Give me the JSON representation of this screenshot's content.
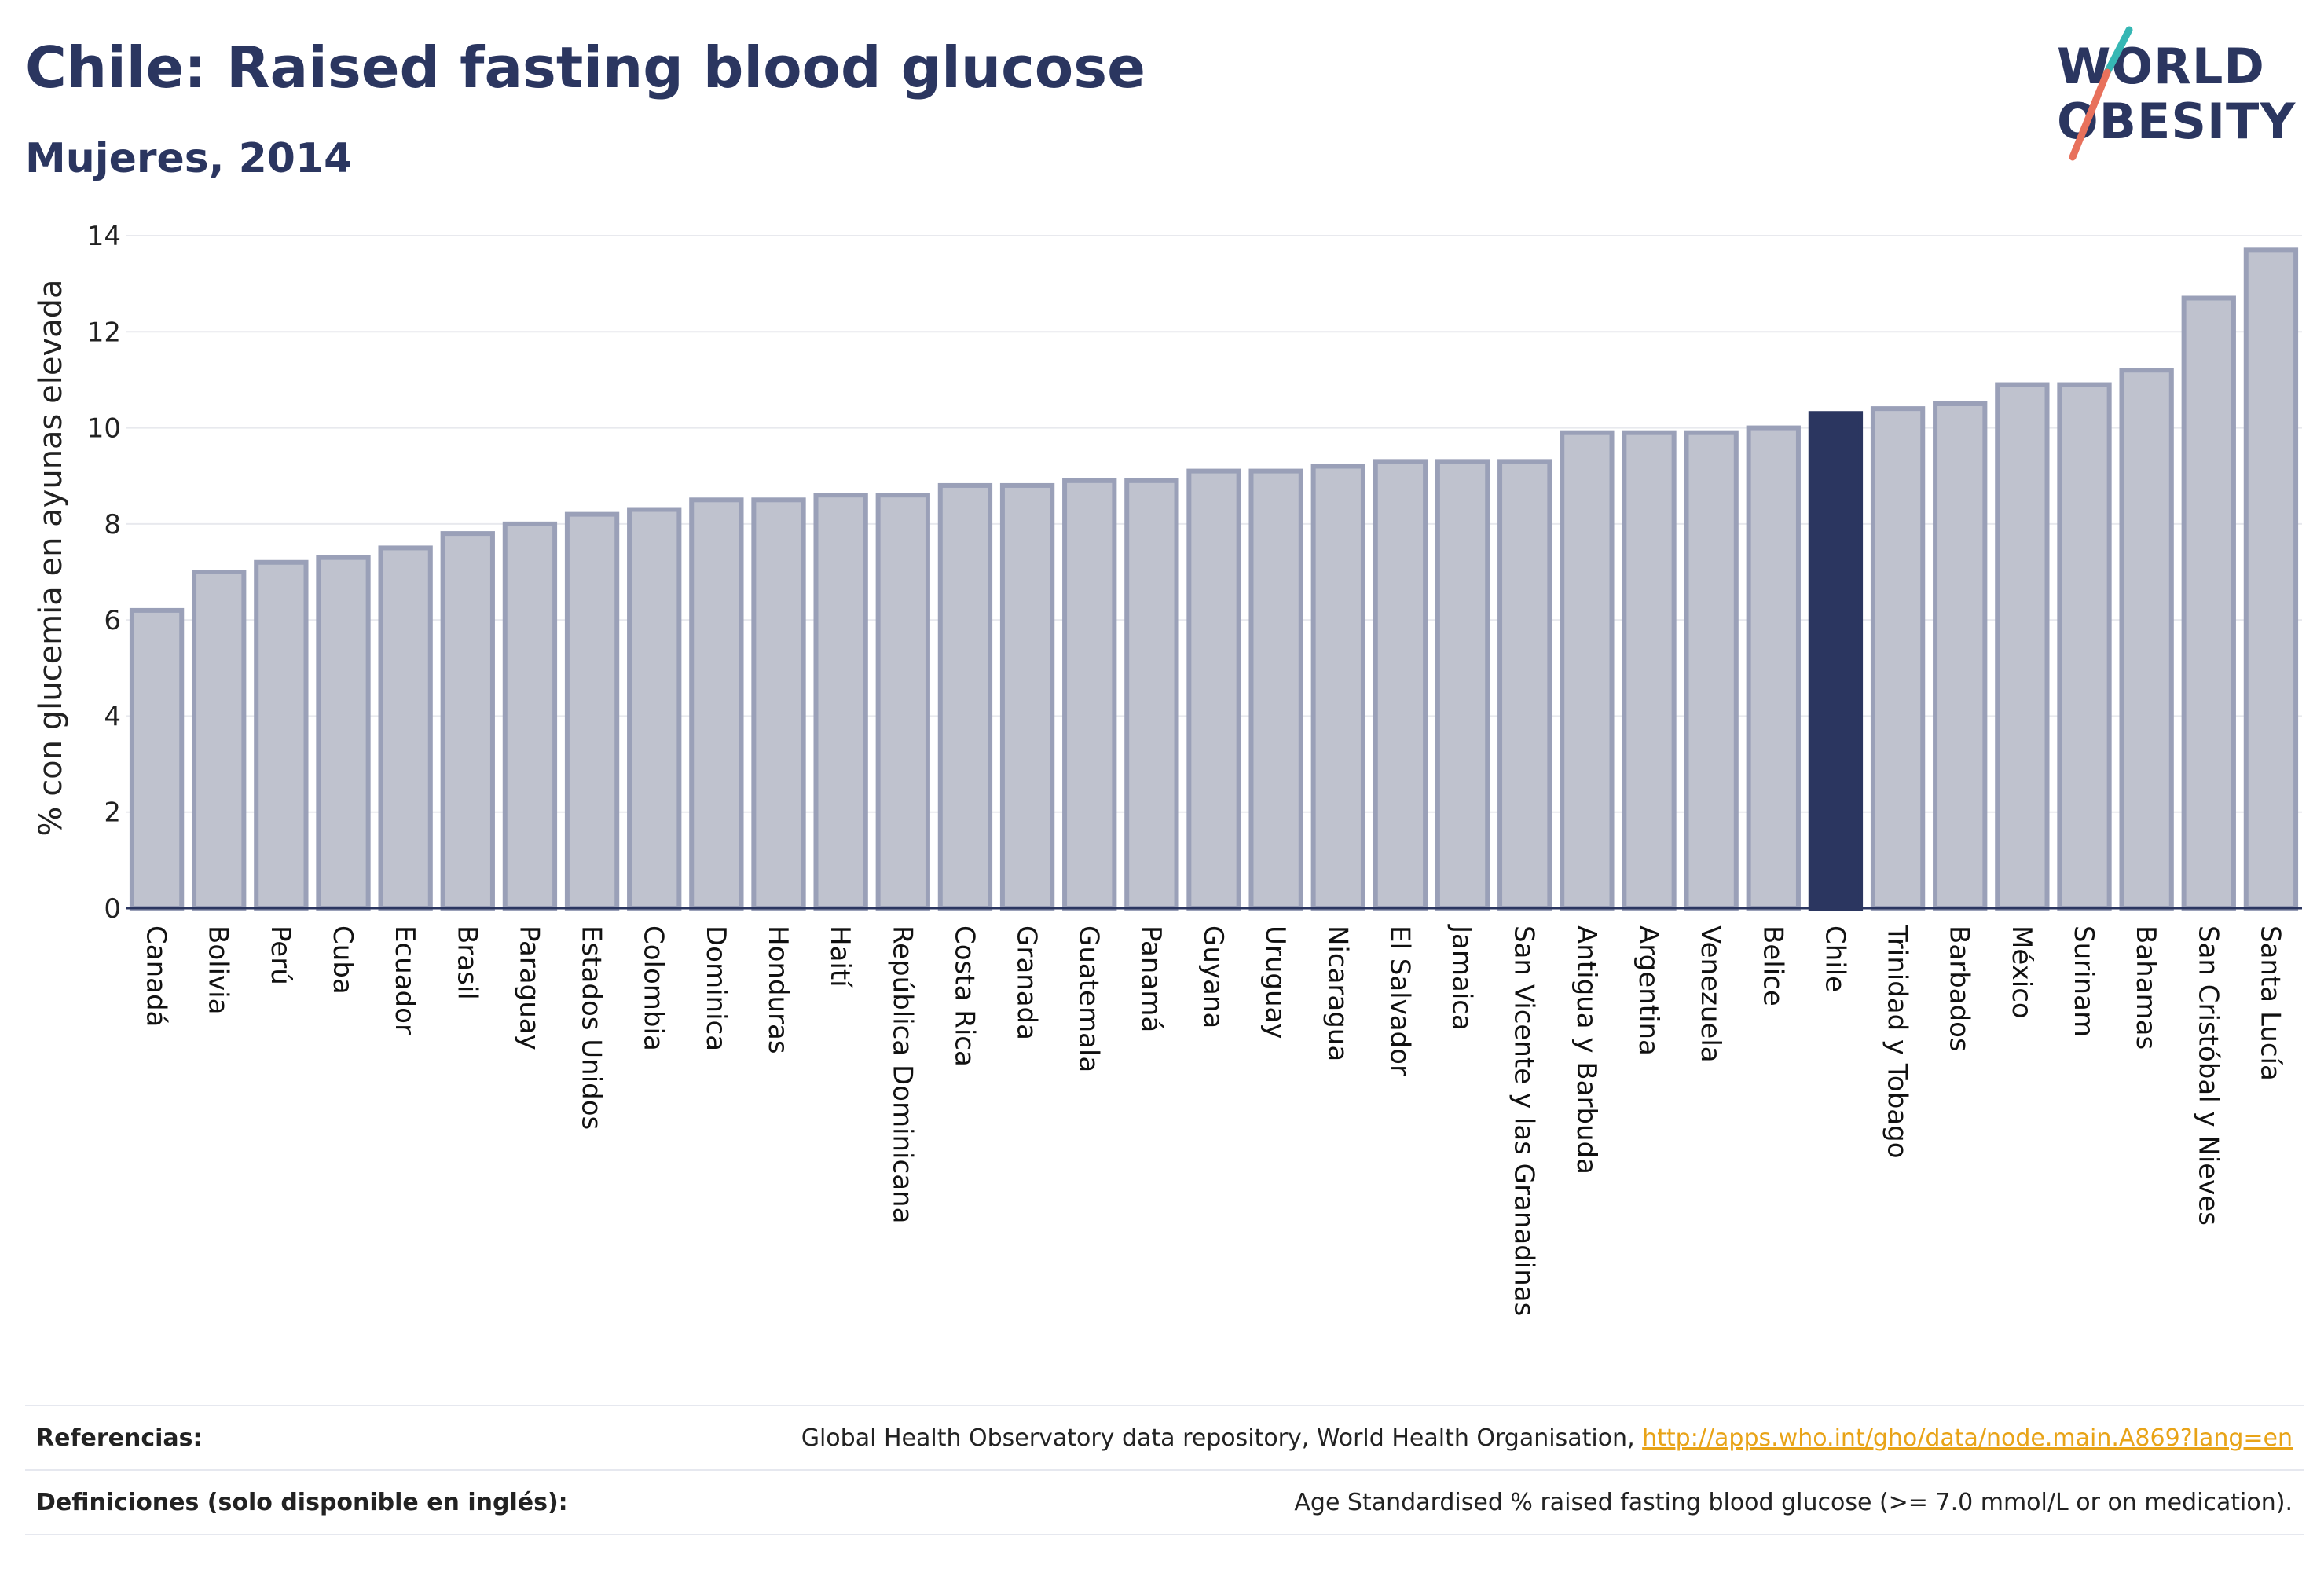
{
  "header": {
    "title": "Chile: Raised fasting blood glucose",
    "subtitle": "Mujeres, 2014"
  },
  "logo": {
    "line1": "WORLD",
    "line2": "OBESITY",
    "slash_colors": [
      "#36b7b4",
      "#e8715c"
    ]
  },
  "chart_data": {
    "type": "bar",
    "title": "Chile: Raised fasting blood glucose",
    "subtitle": "Mujeres, 2014",
    "xlabel": "",
    "ylabel": "% con glucemia en ayunas elevada",
    "ylim": [
      0,
      14
    ],
    "yticks": [
      0,
      2,
      4,
      6,
      8,
      10,
      12,
      14
    ],
    "grid": true,
    "highlight": "Chile",
    "colors": {
      "bar": "#bfc2ce",
      "bar_border": "#9aa0b8",
      "highlight": "#2b3660"
    },
    "categories": [
      "Canadá",
      "Bolivia",
      "Perú",
      "Cuba",
      "Ecuador",
      "Brasil",
      "Paraguay",
      "Estados Unidos",
      "Colombia",
      "Dominica",
      "Honduras",
      "Haití",
      "República Dominicana",
      "Costa Rica",
      "Granada",
      "Guatemala",
      "Panamá",
      "Guyana",
      "Uruguay",
      "Nicaragua",
      "El Salvador",
      "Jamaica",
      "San Vicente y las Granadinas",
      "Antigua y Barbuda",
      "Argentina",
      "Venezuela",
      "Belice",
      "Chile",
      "Trinidad y Tobago",
      "Barbados",
      "México",
      "Surinam",
      "Bahamas",
      "San Cristóbal y Nieves",
      "Santa Lucía"
    ],
    "values": [
      6.2,
      7.0,
      7.2,
      7.3,
      7.5,
      7.8,
      8.0,
      8.2,
      8.3,
      8.5,
      8.5,
      8.6,
      8.6,
      8.8,
      8.8,
      8.9,
      8.9,
      9.1,
      9.1,
      9.2,
      9.3,
      9.3,
      9.3,
      9.9,
      9.9,
      9.9,
      10.0,
      10.3,
      10.4,
      10.5,
      10.9,
      10.9,
      11.2,
      12.7,
      13.7
    ]
  },
  "footer": {
    "references_label": "Referencias:",
    "references_text": "Global Health Observatory data repository, World Health Organisation, ",
    "references_link": "http://apps.who.int/gho/data/node.main.A869?lang=en",
    "definitions_label": "Definiciones (solo disponible en inglés):",
    "definitions_text": "Age Standardised % raised fasting blood glucose (>= 7.0 mmol/L or on medication)."
  }
}
